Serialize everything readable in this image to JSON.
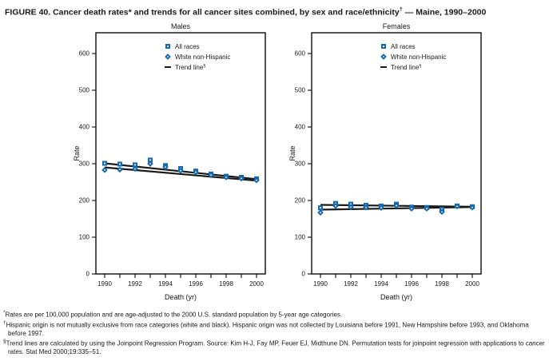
{
  "figure": {
    "title_prefix": "FIGURE 40. Cancer death rates* and trends for all cancer sites combined, by sex and race/ethnicity",
    "title_sup": "†",
    "title_suffix": " — Maine, 1990–2000"
  },
  "style": {
    "marker_blue": "#1668af",
    "line_black": "#1a1a1a",
    "text_color": "#1a1a1a"
  },
  "chart_data": [
    {
      "type": "scatter",
      "title": "Males",
      "xlabel": "Death (yr)",
      "ylabel": "Rate",
      "x": [
        1990,
        1991,
        1992,
        1993,
        1994,
        1995,
        1996,
        1997,
        1998,
        1999,
        2000
      ],
      "xtick_labels": [
        1990,
        1992,
        1994,
        1996,
        1998,
        2000
      ],
      "ylim": [
        0,
        600
      ],
      "yticks": [
        0,
        100,
        200,
        300,
        400,
        500,
        600
      ],
      "grid": false,
      "legend_position": "upper-center",
      "series": [
        {
          "name": "All races",
          "marker": "square",
          "values": [
            301,
            299,
            297,
            310,
            295,
            287,
            280,
            272,
            266,
            263,
            259
          ]
        },
        {
          "name": "White non-Hispanic",
          "marker": "diamond",
          "values": [
            283,
            284,
            286,
            300,
            291,
            281,
            277,
            269,
            263,
            260,
            255
          ]
        }
      ],
      "trend_lines": [
        {
          "name": "All races trend",
          "points": [
            [
              1990,
              301
            ],
            [
              2000,
              258
            ]
          ]
        },
        {
          "name": "White non-Hispanic trend",
          "points": [
            [
              1990,
              290
            ],
            [
              2000,
              254
            ]
          ]
        }
      ],
      "legend": [
        {
          "label": "All races",
          "marker": "square"
        },
        {
          "label": "White non-Hispanic",
          "marker": "diamond"
        },
        {
          "label": "Trend line",
          "sup": "§",
          "marker": "line"
        }
      ]
    },
    {
      "type": "scatter",
      "title": "Females",
      "xlabel": "Death (yr)",
      "ylabel": "Rate",
      "x": [
        1990,
        1991,
        1992,
        1993,
        1994,
        1995,
        1996,
        1997,
        1998,
        1999,
        2000
      ],
      "xtick_labels": [
        1990,
        1992,
        1994,
        1996,
        1998,
        2000
      ],
      "ylim": [
        0,
        600
      ],
      "yticks": [
        0,
        100,
        200,
        300,
        400,
        500,
        600
      ],
      "grid": false,
      "legend_position": "upper-center",
      "series": [
        {
          "name": "All races",
          "marker": "square",
          "values": [
            180,
            192,
            190,
            187,
            185,
            190,
            182,
            181,
            176,
            185,
            183
          ]
        },
        {
          "name": "White non-Hispanic",
          "marker": "diamond",
          "values": [
            167,
            185,
            182,
            181,
            180,
            186,
            178,
            178,
            169,
            184,
            181
          ]
        }
      ],
      "trend_lines": [
        {
          "name": "All races trend",
          "points": [
            [
              1990,
              188
            ],
            [
              2000,
              183
            ]
          ]
        },
        {
          "name": "White non-Hispanic trend",
          "points": [
            [
              1990,
              175
            ],
            [
              2000,
              182
            ]
          ]
        }
      ],
      "legend": [
        {
          "label": "All races",
          "marker": "square"
        },
        {
          "label": "White non-Hispanic",
          "marker": "diamond"
        },
        {
          "label": "Trend line",
          "sup": "§",
          "marker": "line"
        }
      ]
    }
  ],
  "footnotes": [
    {
      "sup": "*",
      "text": "Rates are per 100,000 population and are age-adjusted to the 2000 U.S. standard population by 5-year age categories."
    },
    {
      "sup": "†",
      "text": "Hispanic origin is not mutually exclusive from race categories (white and black). Hispanic origin was not collected by Louisiana before 1991, New Hampshire before 1993, and Oklahoma before 1997."
    },
    {
      "sup": "§",
      "text": "Trend lines are calculated by using the Joinpoint Regression Program. Source: Kim H-J, Fay MP, Feuer EJ, Midthune DN. Permutation tests for joinpoint regression with applications to cancer rates. Stat Med 2000;19:335–51."
    }
  ]
}
